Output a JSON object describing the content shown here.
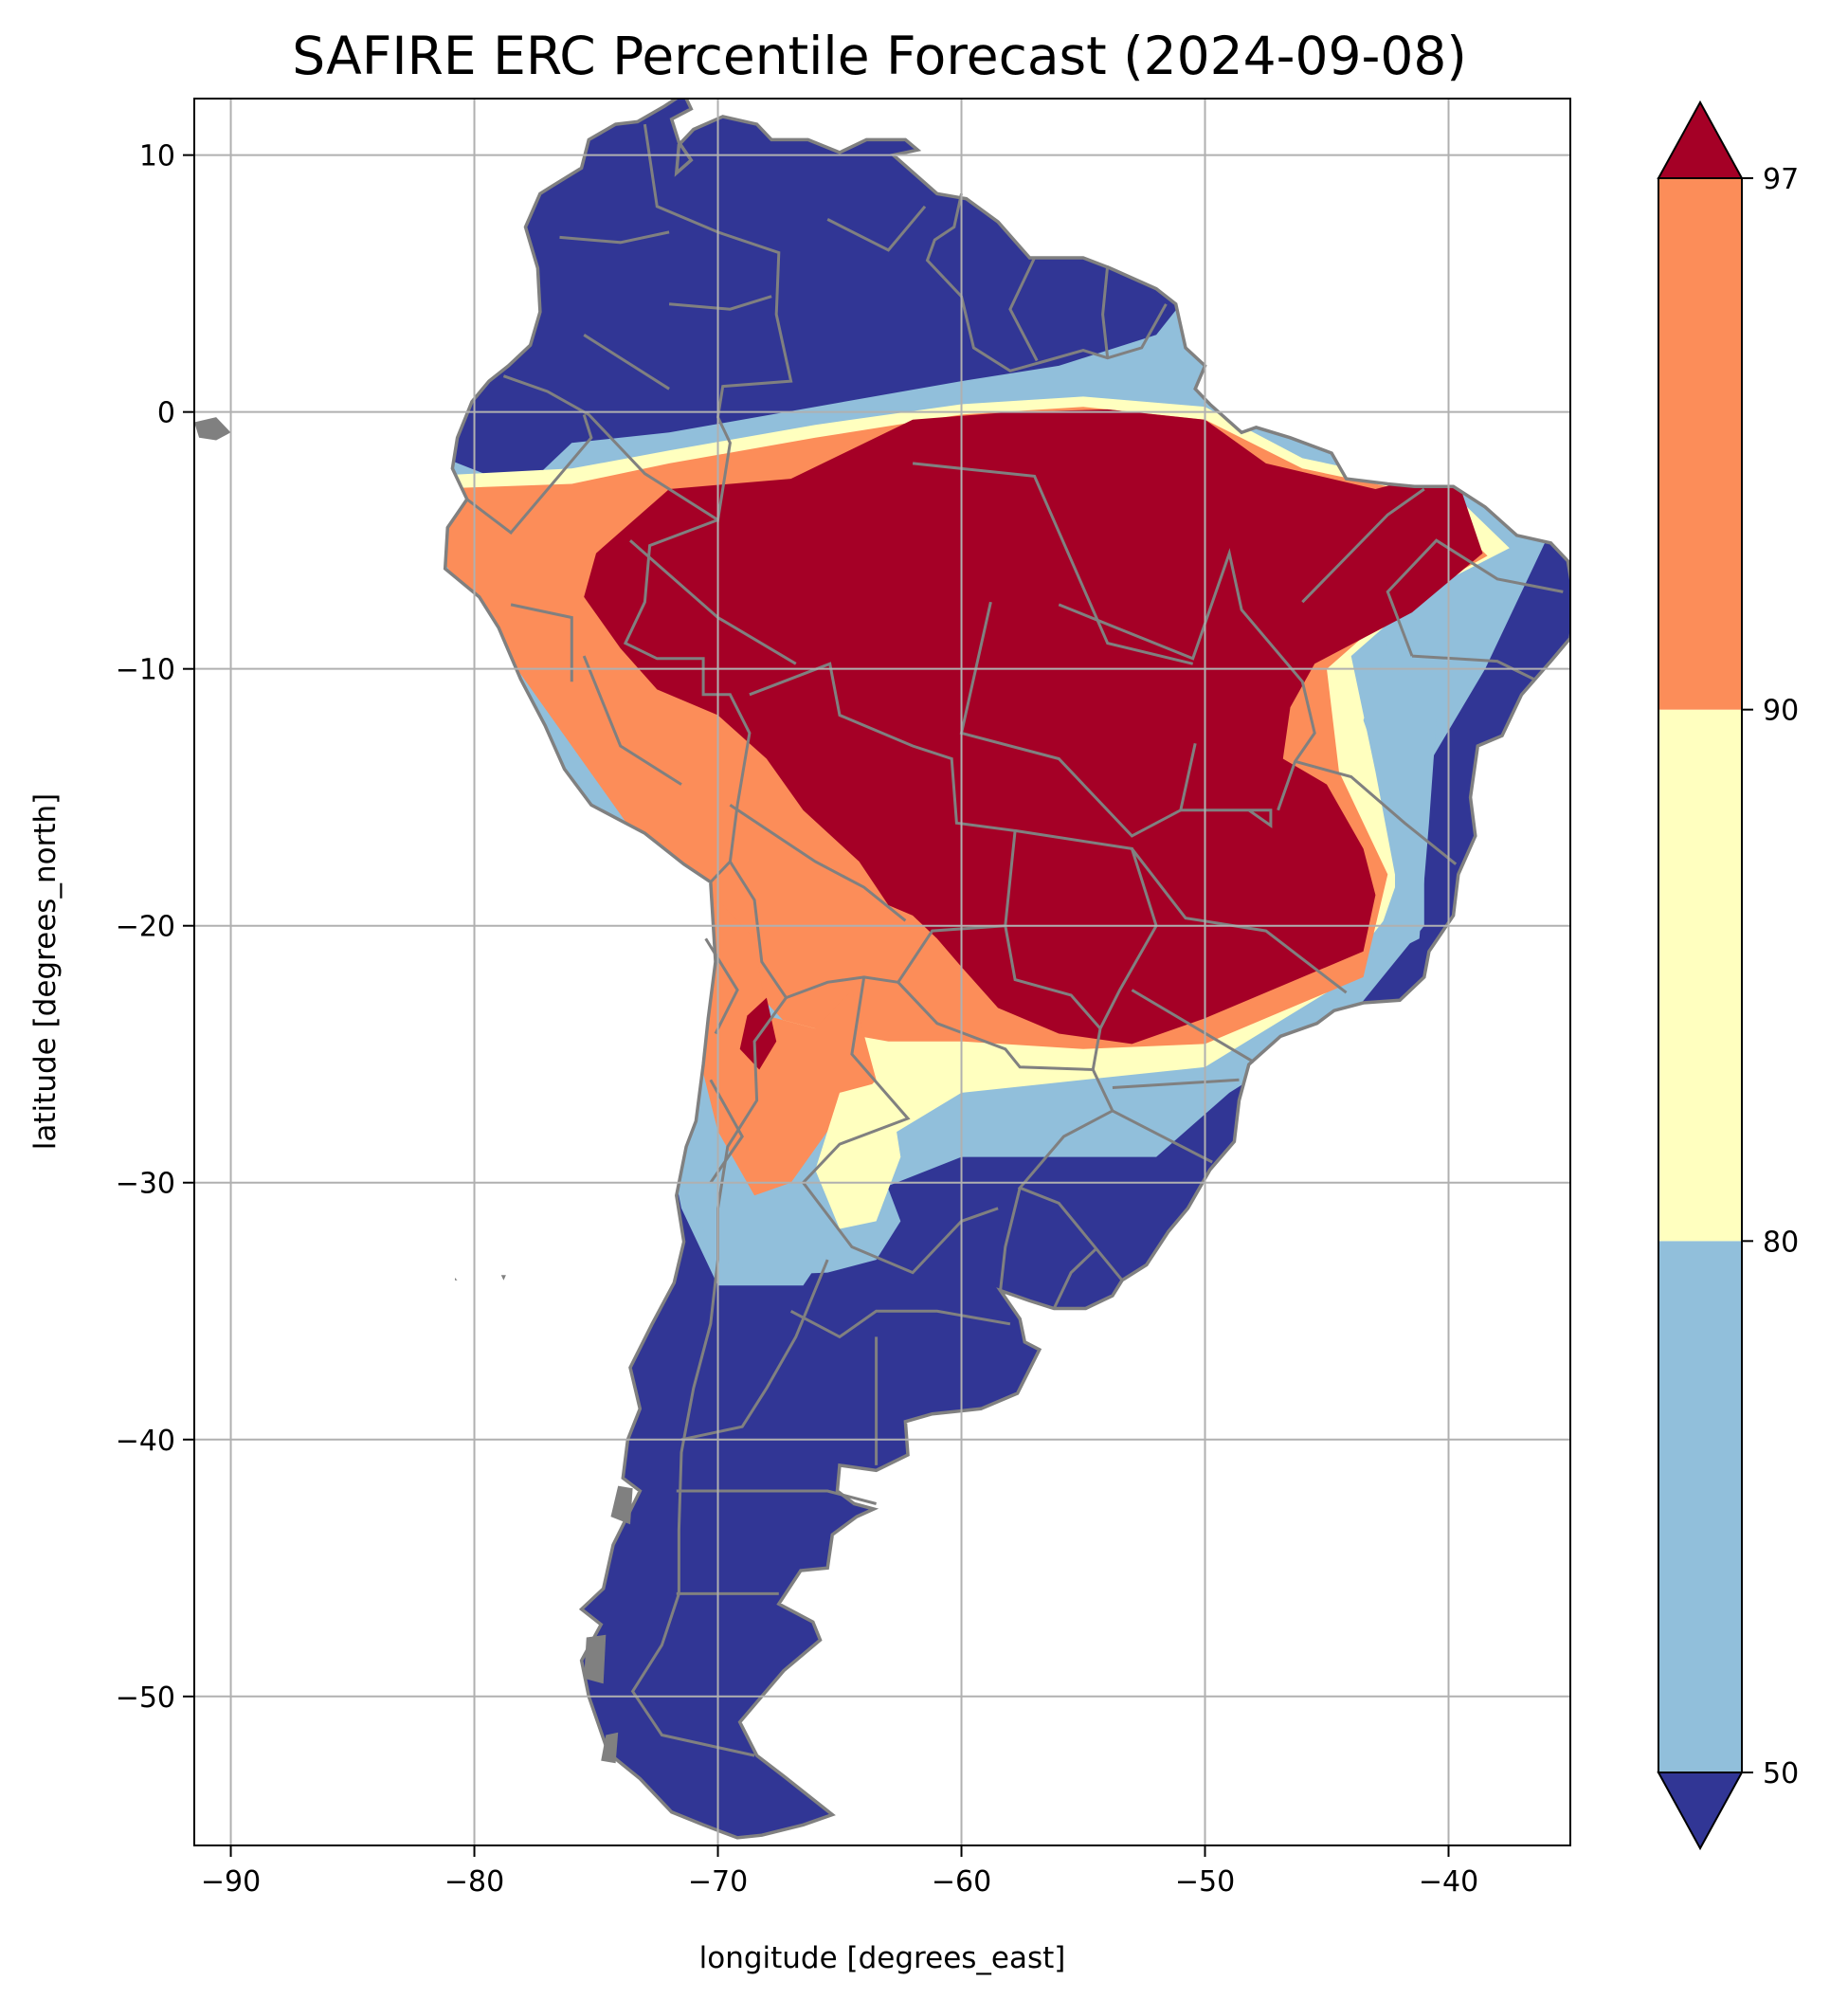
{
  "chart_data": {
    "type": "heatmap",
    "title": "SAFIRE ERC Percentile Forecast (2024-09-08)",
    "xlabel": "longitude [degrees_east]",
    "ylabel": "latitude [degrees_north]",
    "xlim": [
      -91.5,
      -35
    ],
    "ylim": [
      -55.8,
      12.2
    ],
    "x_ticks": [
      -90,
      -80,
      -70,
      -60,
      -50,
      -40
    ],
    "x_tick_labels": [
      "−90",
      "−80",
      "−70",
      "−60",
      "−50",
      "−40"
    ],
    "y_ticks": [
      10,
      0,
      -10,
      -20,
      -30,
      -40,
      -50
    ],
    "y_tick_labels": [
      "10",
      "0",
      "−10",
      "−20",
      "−30",
      "−40",
      "−50"
    ],
    "grid": true,
    "colorbar": {
      "ticks": [
        50,
        80,
        90,
        97
      ],
      "tick_labels": [
        "50",
        "80",
        "90",
        "97"
      ],
      "extend": "both",
      "bins": [
        {
          "range": "<50",
          "color": "#313695"
        },
        {
          "range": "50-80",
          "color": "#91bfdb"
        },
        {
          "range": "80-90",
          "color": "#ffffbf"
        },
        {
          "range": "90-97",
          "color": "#fc8d59"
        },
        {
          "range": ">97",
          "color": "#a50026"
        }
      ]
    }
  },
  "colors": {
    "below50": "#313695",
    "p50to80": "#91bfdb",
    "p80to90": "#ffffbf",
    "p90to97": "#fc8d59",
    "above97": "#a50026",
    "border": "#808080",
    "grid": "#b0b0b0"
  }
}
